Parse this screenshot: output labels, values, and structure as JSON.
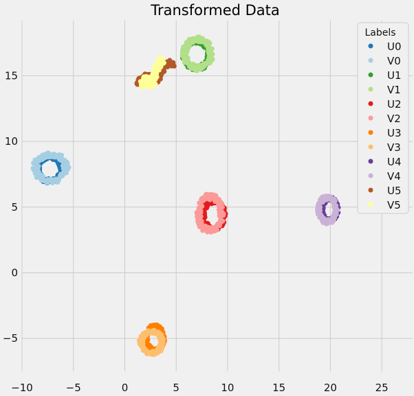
{
  "chart_data": {
    "type": "scatter",
    "title": "Transformed Data",
    "xlabel": "",
    "ylabel": "",
    "xlim": [
      -10,
      28
    ],
    "ylim": [
      -7.5,
      19.2
    ],
    "x_ticks": [
      -10,
      -5,
      0,
      5,
      10,
      15,
      20,
      25
    ],
    "y_ticks": [
      -5,
      0,
      5,
      10,
      15
    ],
    "x_tick_labels": [
      "−10",
      "−5",
      "0",
      "5",
      "10",
      "15",
      "20",
      "25"
    ],
    "y_tick_labels": [
      "−5",
      "0",
      "5",
      "10",
      "15"
    ],
    "grid": true,
    "legend": {
      "title": "Labels",
      "placement": "top-right"
    },
    "series": [
      {
        "name": "U0",
        "color": "#1f78b4",
        "cluster": {
          "shape": "ring",
          "cx": -7.3,
          "cy": 7.9,
          "rx": 1.3,
          "ry": 1.0
        }
      },
      {
        "name": "V0",
        "color": "#a6cee3",
        "cluster": {
          "shape": "ring",
          "cx": -7.2,
          "cy": 8.0,
          "rx": 1.6,
          "ry": 1.1
        }
      },
      {
        "name": "U1",
        "color": "#33a02c",
        "cluster": {
          "shape": "ring",
          "cx": 7.0,
          "cy": 16.6,
          "rx": 1.3,
          "ry": 1.1
        }
      },
      {
        "name": "V1",
        "color": "#b2df8a",
        "cluster": {
          "shape": "ring",
          "cx": 7.1,
          "cy": 16.7,
          "rx": 1.4,
          "ry": 1.2
        }
      },
      {
        "name": "U2",
        "color": "#e31a1c",
        "cluster": {
          "shape": "ring",
          "cx": 8.6,
          "cy": 4.4,
          "rx": 1.1,
          "ry": 1.1
        }
      },
      {
        "name": "V2",
        "color": "#fb9a99",
        "cluster": {
          "shape": "ring",
          "cx": 8.3,
          "cy": 4.5,
          "rx": 1.2,
          "ry": 1.4
        }
      },
      {
        "name": "U3",
        "color": "#ff7f00",
        "cluster": {
          "shape": "ring",
          "cx": 2.9,
          "cy": -5.0,
          "rx": 0.9,
          "ry": 1.0
        }
      },
      {
        "name": "V3",
        "color": "#fdbf6f",
        "cluster": {
          "shape": "ring",
          "cx": 2.6,
          "cy": -5.3,
          "rx": 1.1,
          "ry": 0.9
        }
      },
      {
        "name": "U4",
        "color": "#6a3d9a",
        "cluster": {
          "shape": "ring",
          "cx": 19.9,
          "cy": 4.8,
          "rx": 0.8,
          "ry": 0.9
        }
      },
      {
        "name": "V4",
        "color": "#cab2d6",
        "cluster": {
          "shape": "ring",
          "cx": 19.7,
          "cy": 4.8,
          "rx": 0.9,
          "ry": 1.0
        }
      },
      {
        "name": "U5",
        "color": "#b15928",
        "cluster": {
          "shape": "band",
          "x0": 1.3,
          "y0": 14.3,
          "x1": 4.8,
          "y1": 15.8,
          "spread": 0.4
        }
      },
      {
        "name": "V5",
        "color": "#ffff99",
        "cluster": {
          "shape": "band",
          "x0": 1.4,
          "y0": 13.9,
          "x1": 3.8,
          "y1": 15.9,
          "spread": 0.5
        }
      }
    ]
  }
}
